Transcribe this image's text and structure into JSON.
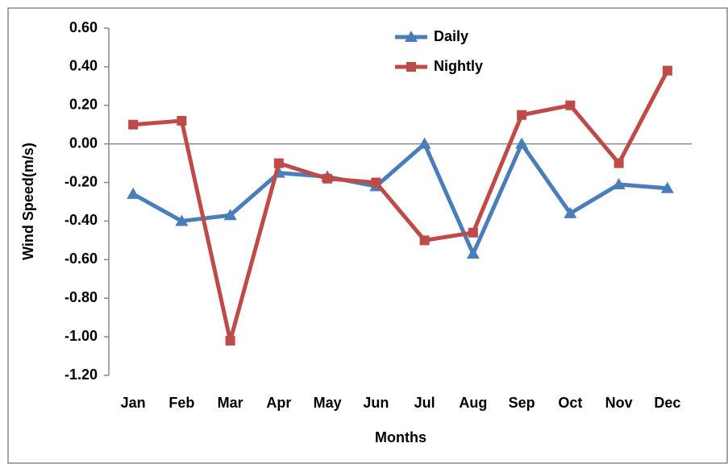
{
  "chart_data": {
    "type": "line",
    "x_label": "Months",
    "y_label": "Wind Speed(m/s)",
    "categories": [
      "Jan",
      "Feb",
      "Mar",
      "Apr",
      "May",
      "Jun",
      "Jul",
      "Aug",
      "Sep",
      "Oct",
      "Nov",
      "Dec"
    ],
    "series": [
      {
        "name": "Daily",
        "color": "#4a7ebb",
        "marker": "triangle",
        "values": [
          -0.26,
          -0.4,
          -0.37,
          -0.15,
          -0.17,
          -0.22,
          0.0,
          -0.57,
          0.0,
          -0.36,
          -0.21,
          -0.23
        ]
      },
      {
        "name": "Nightly",
        "color": "#be4b48",
        "marker": "square",
        "values": [
          0.1,
          0.12,
          -1.02,
          -0.1,
          -0.18,
          -0.2,
          -0.5,
          -0.46,
          0.15,
          0.2,
          -0.1,
          0.38
        ]
      }
    ],
    "ylim": [
      -1.2,
      0.6
    ],
    "yticks": [
      {
        "value": 0.6,
        "label": "0.60"
      },
      {
        "value": 0.4,
        "label": "0.40"
      },
      {
        "value": 0.2,
        "label": "0.20"
      },
      {
        "value": 0,
        "label": "0.00"
      },
      {
        "value": -0.2,
        "label": "-0.20"
      },
      {
        "value": -0.4,
        "label": "-0.40"
      },
      {
        "value": -0.6,
        "label": "-0.60"
      },
      {
        "value": -0.8,
        "label": "-0.80"
      },
      {
        "value": -1.0,
        "label": "-1.00"
      },
      {
        "value": -1.2,
        "label": "-1.20"
      }
    ],
    "grid": false,
    "legend": "top-center"
  }
}
